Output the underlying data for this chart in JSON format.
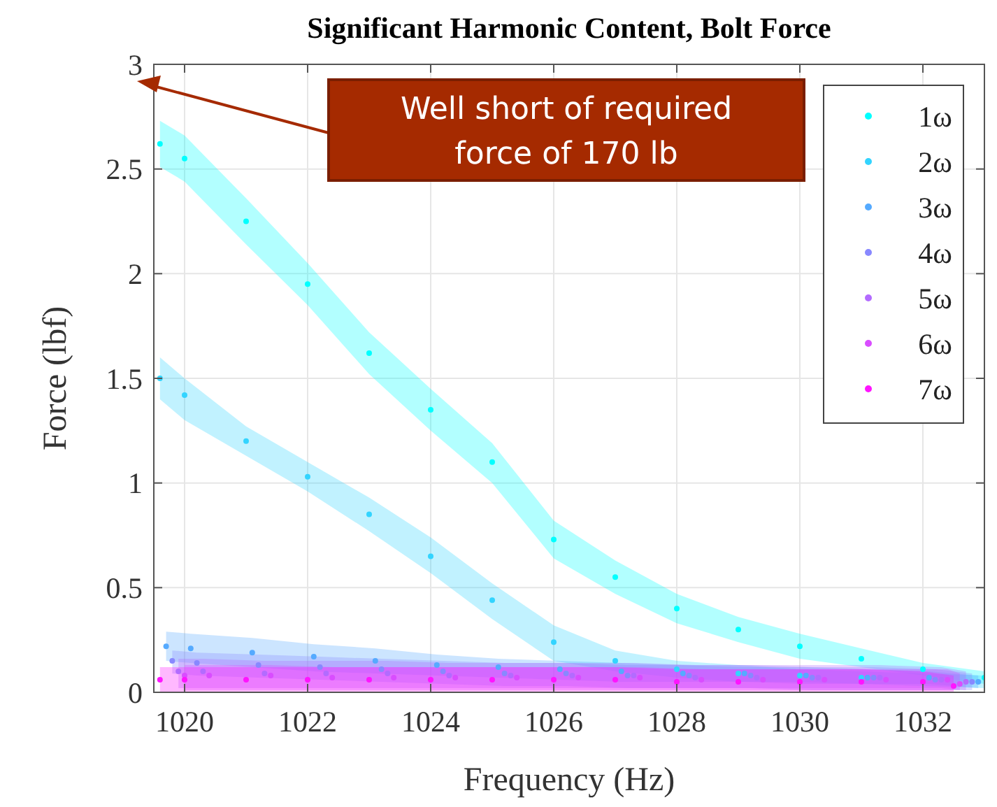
{
  "chart_data": {
    "type": "scatter",
    "title": "Significant Harmonic Content, Bolt Force",
    "xlabel": "Frequency (Hz)",
    "ylabel": "Force (lbf)",
    "x": [
      1019.6,
      1020,
      1021,
      1022,
      1023,
      1024,
      1025,
      1026,
      1027,
      1028,
      1029,
      1030,
      1031,
      1032,
      1033
    ],
    "series": [
      {
        "name": "1ω",
        "color": "#00ffff",
        "values": [
          2.62,
          2.55,
          2.25,
          1.95,
          1.62,
          1.35,
          1.1,
          0.73,
          0.55,
          0.4,
          0.3,
          0.22,
          0.16,
          0.11,
          0.07
        ],
        "lower": [
          2.51,
          2.44,
          2.14,
          1.85,
          1.52,
          1.25,
          1.0,
          0.64,
          0.47,
          0.33,
          0.24,
          0.16,
          0.12,
          0.08,
          0.04
        ],
        "upper": [
          2.73,
          2.66,
          2.36,
          2.05,
          1.72,
          1.45,
          1.19,
          0.82,
          0.63,
          0.47,
          0.36,
          0.28,
          0.21,
          0.14,
          0.1
        ]
      },
      {
        "name": "2ω",
        "color": "#33d4ff",
        "values": [
          1.5,
          1.42,
          1.2,
          1.03,
          0.85,
          0.65,
          0.44,
          0.24,
          0.15,
          0.11,
          0.09,
          0.08,
          0.07,
          null,
          null
        ],
        "lower": [
          1.4,
          1.3,
          1.13,
          0.96,
          0.77,
          0.57,
          0.35,
          0.15,
          0.1,
          0.07,
          0.05,
          0.05,
          0.04,
          0.03,
          0.02
        ],
        "upper": [
          1.6,
          1.5,
          1.27,
          1.1,
          0.93,
          0.74,
          0.52,
          0.32,
          0.2,
          0.15,
          0.13,
          0.11,
          0.1,
          0.09,
          0.08
        ]
      },
      {
        "name": "3ω",
        "color": "#55aaff",
        "x": [
          1019.7,
          1020.1,
          1021.1,
          1022.1,
          1023.1,
          1024.1,
          1025.1,
          1026.1,
          1027.1,
          1028.1,
          1029.1,
          1030.1,
          1031.1,
          1032.1,
          1032.9
        ],
        "values": [
          0.22,
          0.21,
          0.19,
          0.17,
          0.15,
          0.13,
          0.12,
          0.11,
          0.1,
          0.09,
          0.09,
          0.08,
          0.07,
          0.07,
          0.05
        ],
        "lower": [
          0.15,
          0.14,
          0.12,
          0.1,
          0.09,
          0.08,
          0.07,
          0.06,
          0.05,
          0.05,
          0.05,
          0.04,
          0.04,
          0.04,
          0.02
        ],
        "upper": [
          0.29,
          0.28,
          0.26,
          0.23,
          0.21,
          0.18,
          0.16,
          0.15,
          0.14,
          0.13,
          0.12,
          0.12,
          0.11,
          0.1,
          0.08
        ]
      },
      {
        "name": "4ω",
        "color": "#8888ff",
        "x": [
          1019.8,
          1020.2,
          1021.2,
          1022.2,
          1023.2,
          1024.2,
          1025.2,
          1026.2,
          1027.2,
          1028.2,
          1029.2,
          1030.2,
          1031.2,
          1032.2,
          1032.8
        ],
        "values": [
          0.15,
          0.14,
          0.13,
          0.12,
          0.11,
          0.1,
          0.09,
          0.09,
          0.08,
          0.08,
          0.08,
          0.07,
          0.07,
          0.06,
          0.05
        ],
        "lower": [
          0.09,
          0.08,
          0.07,
          0.06,
          0.05,
          0.04,
          0.03,
          0.03,
          0.02,
          0.02,
          0.02,
          0.01,
          0.01,
          0.01,
          0.01
        ],
        "upper": [
          0.2,
          0.19,
          0.18,
          0.17,
          0.16,
          0.15,
          0.14,
          0.14,
          0.13,
          0.13,
          0.13,
          0.12,
          0.12,
          0.11,
          0.09
        ]
      },
      {
        "name": "5ω",
        "color": "#b36bff",
        "x": [
          1019.9,
          1020.3,
          1021.3,
          1022.3,
          1023.3,
          1024.3,
          1025.3,
          1026.3,
          1027.3,
          1028.3,
          1029.3,
          1030.3,
          1031.3,
          1032.3,
          1032.7
        ],
        "values": [
          0.1,
          0.1,
          0.09,
          0.09,
          0.09,
          0.08,
          0.08,
          0.08,
          0.08,
          0.07,
          0.07,
          0.07,
          0.07,
          0.06,
          0.05
        ],
        "lower": [
          0.02,
          0.02,
          0.02,
          0.02,
          0.02,
          0.02,
          0.02,
          0.02,
          0.02,
          0.02,
          0.02,
          0.02,
          0.02,
          0.02,
          0.01
        ],
        "upper": [
          0.16,
          0.16,
          0.15,
          0.15,
          0.15,
          0.14,
          0.14,
          0.14,
          0.14,
          0.13,
          0.13,
          0.13,
          0.13,
          0.12,
          0.1
        ]
      },
      {
        "name": "6ω",
        "color": "#d94dff",
        "x": [
          1020.0,
          1020.4,
          1021.4,
          1022.4,
          1023.4,
          1024.4,
          1025.4,
          1026.4,
          1027.4,
          1028.4,
          1029.4,
          1030.4,
          1031.4,
          1032.4,
          1032.6
        ],
        "values": [
          0.08,
          0.08,
          0.08,
          0.07,
          0.07,
          0.07,
          0.07,
          0.07,
          0.07,
          0.06,
          0.06,
          0.06,
          0.06,
          0.06,
          0.04
        ],
        "lower": [
          0.01,
          0.01,
          0.01,
          0.01,
          0.01,
          0.01,
          0.01,
          0.01,
          0.01,
          0.01,
          0.01,
          0.01,
          0.01,
          0.01,
          0.01
        ],
        "upper": [
          0.13,
          0.13,
          0.13,
          0.12,
          0.12,
          0.12,
          0.12,
          0.12,
          0.12,
          0.11,
          0.11,
          0.11,
          0.11,
          0.11,
          0.09
        ]
      },
      {
        "name": "7ω",
        "color": "#ff14ff",
        "x": [
          1019.6,
          1020,
          1021,
          1022,
          1023,
          1024,
          1025,
          1026,
          1027,
          1028,
          1029,
          1030,
          1031,
          1032,
          1032.5
        ],
        "values": [
          0.06,
          0.06,
          0.06,
          0.06,
          0.06,
          0.06,
          0.06,
          0.06,
          0.06,
          0.05,
          0.05,
          0.05,
          0.05,
          0.05,
          0.03
        ],
        "lower": [
          0,
          0,
          0,
          0,
          0,
          0,
          0,
          0,
          0,
          0,
          0,
          0,
          0,
          0,
          0
        ],
        "upper": [
          0.12,
          0.12,
          0.12,
          0.12,
          0.12,
          0.12,
          0.12,
          0.12,
          0.12,
          0.11,
          0.11,
          0.11,
          0.11,
          0.1,
          0.08
        ]
      }
    ],
    "xlim": [
      1019.5,
      1033
    ],
    "xticks": [
      1020,
      1022,
      1024,
      1026,
      1028,
      1030,
      1032
    ],
    "ylim": [
      0,
      3
    ],
    "yticks": [
      0,
      0.5,
      1,
      1.5,
      2,
      2.5,
      3
    ],
    "grid": true,
    "legend": "top right",
    "marker": "circle",
    "annotations": [
      "Well short of required force of 170 lb"
    ]
  }
}
